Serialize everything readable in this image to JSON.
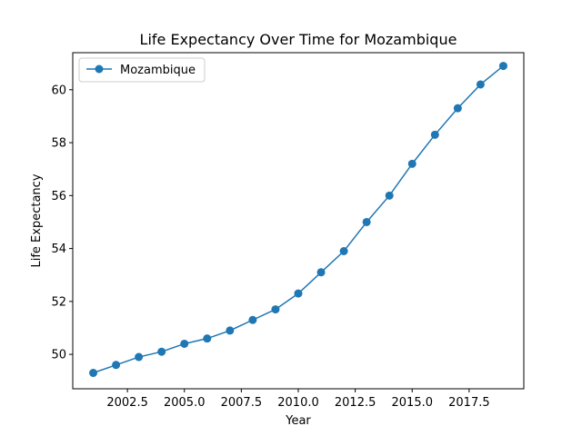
{
  "chart_data": {
    "type": "line",
    "title": "Life Expectancy Over Time for Mozambique",
    "xlabel": "Year",
    "ylabel": "Life Expectancy",
    "xlim": [
      2000.1,
      2019.9
    ],
    "ylim": [
      48.7,
      61.4
    ],
    "xticks": [
      2002.5,
      2005.0,
      2007.5,
      2010.0,
      2012.5,
      2015.0,
      2017.5
    ],
    "xtick_labels": [
      "2002.5",
      "2005.0",
      "2007.5",
      "2010.0",
      "2012.5",
      "2015.0",
      "2017.5"
    ],
    "yticks": [
      50,
      52,
      54,
      56,
      58,
      60
    ],
    "ytick_labels": [
      "50",
      "52",
      "54",
      "56",
      "58",
      "60"
    ],
    "grid": false,
    "legend_position": "top-left",
    "series": [
      {
        "name": "Mozambique",
        "color": "#1f77b4",
        "x": [
          2001,
          2002,
          2003,
          2004,
          2005,
          2006,
          2007,
          2008,
          2009,
          2010,
          2011,
          2012,
          2013,
          2014,
          2015,
          2016,
          2017,
          2018,
          2019
        ],
        "y": [
          49.3,
          49.6,
          49.9,
          50.1,
          50.4,
          50.6,
          50.9,
          51.3,
          51.7,
          52.3,
          53.1,
          53.9,
          55.0,
          56.0,
          57.2,
          58.3,
          59.3,
          60.2,
          60.9
        ]
      }
    ]
  }
}
